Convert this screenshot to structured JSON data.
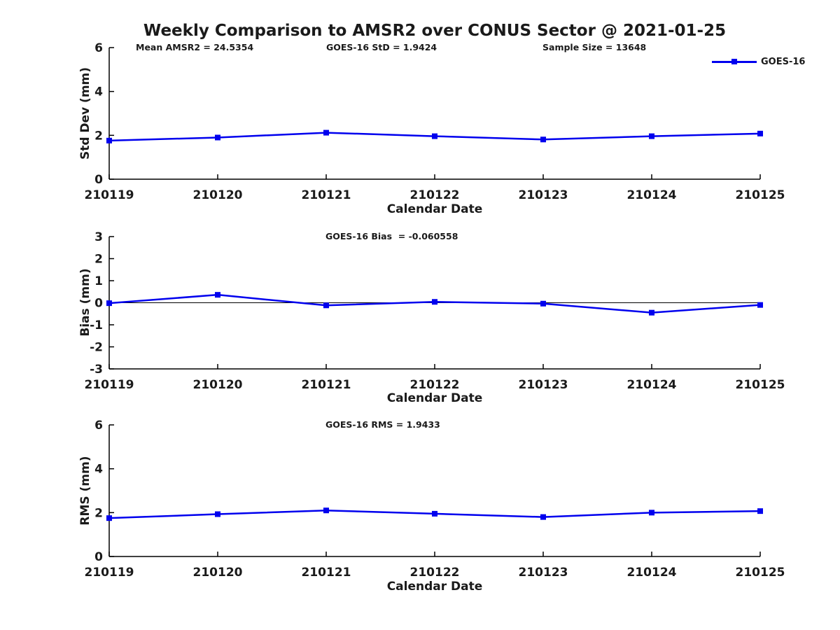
{
  "title": "Weekly Comparison to AMSR2 over CONUS Sector @ 2021-01-25",
  "legend": {
    "label": "GOES-16",
    "color": "#0000ee"
  },
  "annotations": {
    "mean_amsr2": "Mean AMSR2 = 24.5354",
    "goes16_std": "GOES-16 StD = 1.9424",
    "sample_size": "Sample Size = 13648",
    "goes16_bias": "GOES-16 Bias  = -0.060558",
    "goes16_rms": "GOES-16 RMS = 1.9433"
  },
  "chart_data": [
    {
      "type": "line",
      "name": "std-dev",
      "categories": [
        "210119",
        "210120",
        "210121",
        "210122",
        "210123",
        "210124",
        "210125"
      ],
      "series": [
        {
          "name": "GOES-16",
          "color": "#0000ee",
          "marker": "square",
          "values": [
            1.76,
            1.9,
            2.12,
            1.96,
            1.81,
            1.96,
            2.08
          ]
        }
      ],
      "xlabel": "Calendar Date",
      "ylabel": "Std Dev (mm)",
      "ylim": [
        0,
        6
      ],
      "yticks": [
        0,
        2,
        4,
        6
      ],
      "grid": false,
      "zero_line": false,
      "legend_position": "top-right"
    },
    {
      "type": "line",
      "name": "bias",
      "categories": [
        "210119",
        "210120",
        "210121",
        "210122",
        "210123",
        "210124",
        "210125"
      ],
      "series": [
        {
          "name": "GOES-16",
          "color": "#0000ee",
          "marker": "square",
          "values": [
            -0.02,
            0.36,
            -0.12,
            0.04,
            -0.04,
            -0.45,
            -0.1
          ]
        }
      ],
      "xlabel": "Calendar Date",
      "ylabel": "Bias (mm)",
      "ylim": [
        -3,
        3
      ],
      "yticks": [
        -3,
        -2,
        -1,
        0,
        1,
        2,
        3
      ],
      "grid": false,
      "zero_line": true,
      "legend_position": "none"
    },
    {
      "type": "line",
      "name": "rms",
      "categories": [
        "210119",
        "210120",
        "210121",
        "210122",
        "210123",
        "210124",
        "210125"
      ],
      "series": [
        {
          "name": "GOES-16",
          "color": "#0000ee",
          "marker": "square",
          "values": [
            1.75,
            1.93,
            2.1,
            1.95,
            1.8,
            2.0,
            2.07
          ]
        }
      ],
      "xlabel": "Calendar Date",
      "ylabel": "RMS (mm)",
      "ylim": [
        0,
        6
      ],
      "yticks": [
        0,
        2,
        4,
        6
      ],
      "grid": false,
      "zero_line": false,
      "legend_position": "none"
    }
  ]
}
